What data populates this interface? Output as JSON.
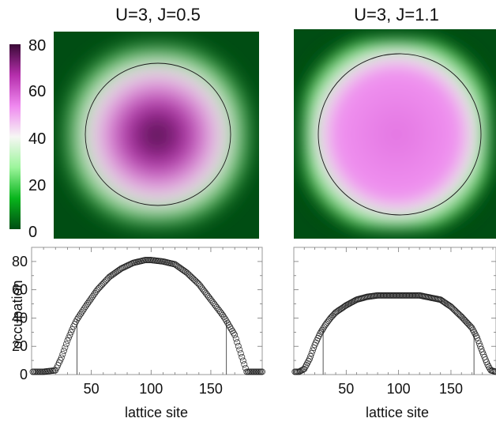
{
  "figure": {
    "panels": [
      {
        "title": "U=3, J=0.5"
      },
      {
        "title": "U=3, J=1.1"
      }
    ],
    "colorbar": {
      "ticks": [
        "80",
        "60",
        "40",
        "20",
        "0"
      ],
      "range": [
        0,
        80
      ],
      "colors": [
        "#004d13",
        "#08b51c",
        "#9cf59b",
        "#f6f7f4",
        "#ef88ef",
        "#b52eac",
        "#3a0a36"
      ]
    },
    "heatmaps": [
      {
        "center_value": 80,
        "edge_value": 0,
        "plateau": false
      },
      {
        "center_value": 56,
        "edge_value": 0,
        "plateau": true
      }
    ]
  },
  "chart_data": [
    {
      "type": "scatter",
      "title": "U=3, J=0.5",
      "xlabel": "lattice site",
      "ylabel": "occupation",
      "xlim": [
        0,
        193
      ],
      "ylim": [
        0,
        90
      ],
      "xticks": [
        "50",
        "100",
        "150"
      ],
      "yticks": [
        "0",
        "20",
        "40",
        "60",
        "80"
      ],
      "series": [
        {
          "x": [
            0,
            10,
            20,
            25,
            30,
            35,
            38,
            45,
            55,
            65,
            75,
            85,
            95,
            100,
            110,
            120,
            130,
            140,
            150,
            160,
            163,
            170,
            175,
            180,
            190,
            193
          ],
          "y": [
            2,
            2,
            3,
            12,
            24,
            34,
            39,
            48,
            60,
            69,
            75,
            79,
            81,
            81,
            80,
            78,
            72,
            64,
            53,
            42,
            38,
            28,
            15,
            2,
            2,
            2
          ]
        }
      ],
      "vertical_lines_x": [
        38,
        163
      ]
    },
    {
      "type": "scatter",
      "title": "U=3, J=1.1",
      "xlabel": "lattice site",
      "ylabel": "",
      "xlim": [
        0,
        193
      ],
      "ylim": [
        0,
        90
      ],
      "xticks": [
        "50",
        "100",
        "150"
      ],
      "yticks": [],
      "series": [
        {
          "x": [
            0,
            5,
            10,
            15,
            20,
            25,
            30,
            35,
            40,
            50,
            60,
            70,
            80,
            100,
            120,
            140,
            150,
            160,
            165,
            170,
            175,
            180,
            185,
            188,
            193
          ],
          "y": [
            2,
            2,
            4,
            11,
            21,
            29,
            35,
            40,
            44,
            49,
            53,
            55,
            56,
            56,
            56,
            53,
            48,
            41,
            37,
            33,
            26,
            16,
            7,
            3,
            2
          ]
        }
      ],
      "vertical_lines_x": [
        28,
        172
      ]
    }
  ]
}
